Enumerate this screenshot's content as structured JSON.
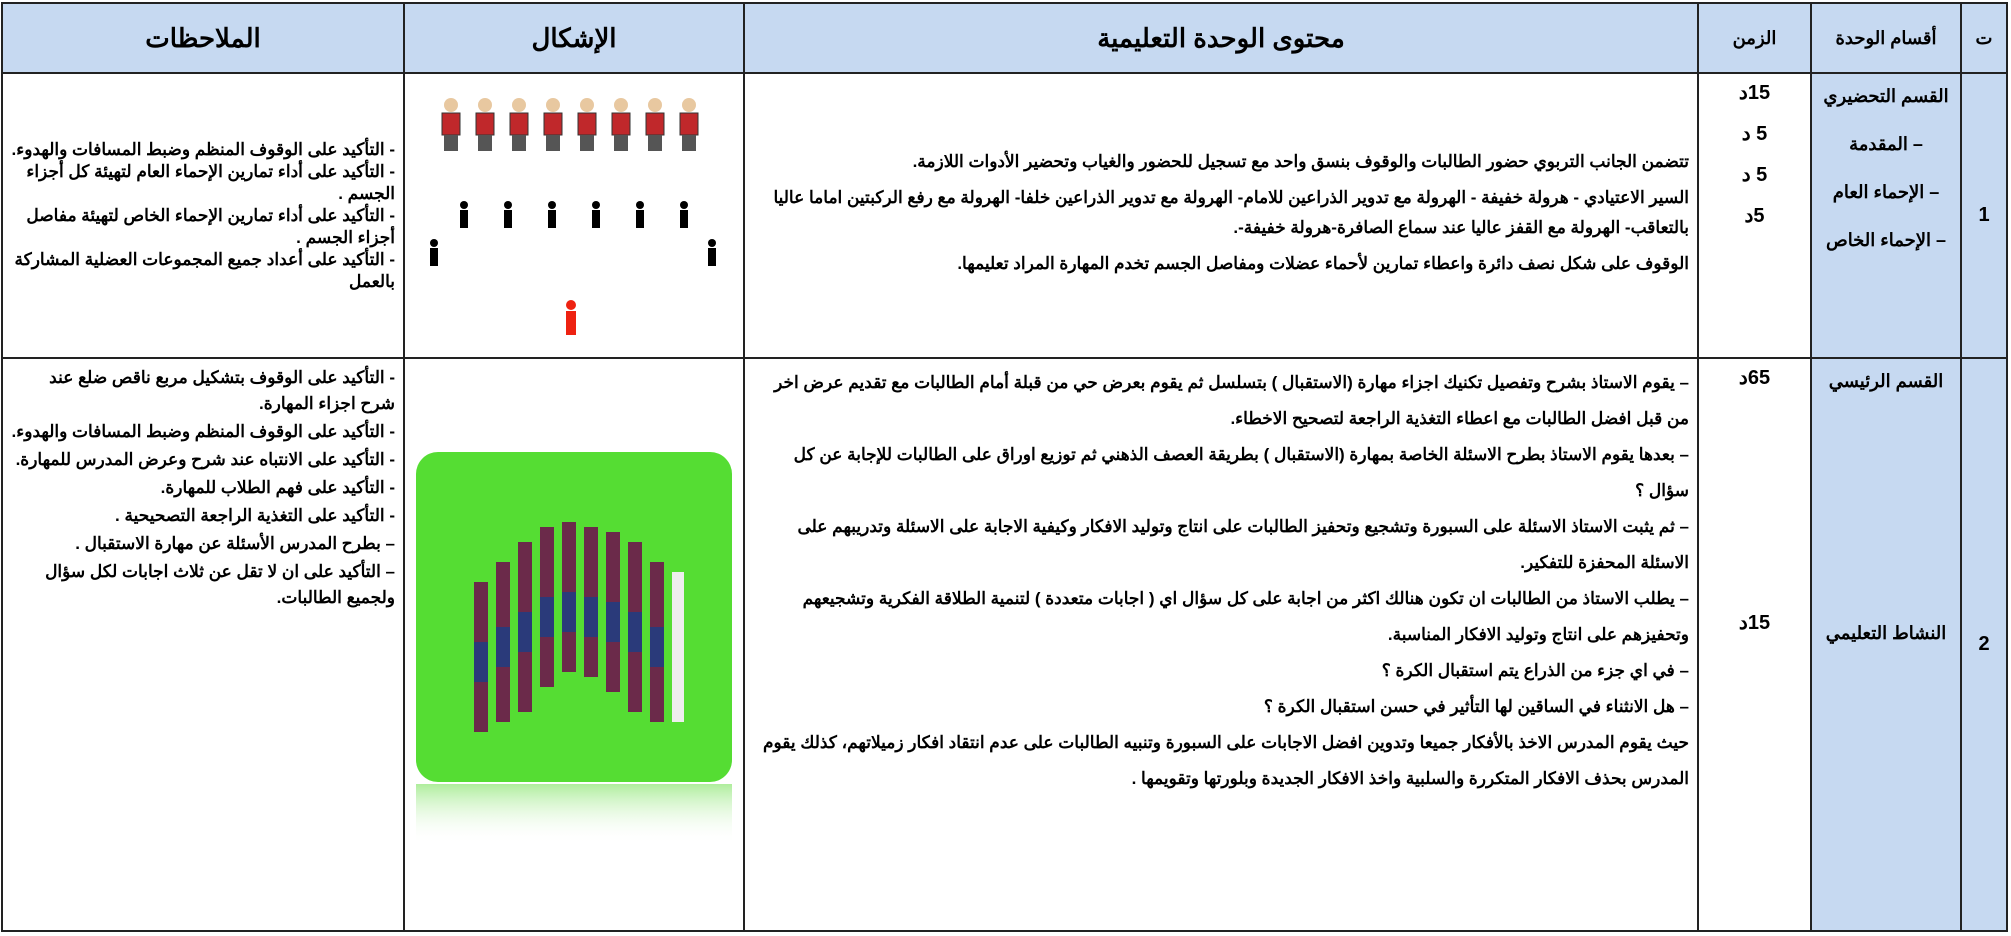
{
  "table": {
    "headers": [
      "ت",
      "أقسام الوحدة",
      "الزمن",
      "محتوى الوحدة التعليمية",
      "الإشكال",
      "الملاحظات"
    ],
    "rows": [
      {
        "number": "1",
        "sections": [
          "القسم التحضيري",
          "– المقدمة",
          "– الإحماء العام",
          "– الإحماء الخاص"
        ],
        "times": [
          "15د",
          "5 د",
          "5 د",
          "5د"
        ],
        "content": [
          "تتضمن الجانب التربوي حضور الطالبات والوقوف بنسق واحد مع تسجيل للحضور والغياب وتحضير الأدوات اللازمة.",
          "السير الاعتيادي - هرولة خفيفة - الهرولة مع تدوير الذراعين للامام- الهرولة مع تدوير الذراعين خلفا- الهرولة مع رفع الركبتين اماما عاليا بالتعاقب- الهرولة مع القفز عاليا عند سماع الصافرة-هرولة خفيفة-.",
          "الوقوف على شكل نصف دائرة واعطاء تمارين لأحماء عضلات ومفاصل الجسم تخدم المهارة المراد تعليمها."
        ],
        "notes": [
          "- التأكيد على الوقوف المنظم وضبط المسافات والهدوء.",
          "- التأكيد على أداء تمارين الإحماء العام لتهيئة كل أجزاء الجسم .",
          "- التأكيد على أداء تمارين الإحماء الخاص لتهيئة مفاصل أجزاء الجسم .",
          "- التأكيد على أعداد جميع المجموعات العضلية المشاركة بالعمل"
        ]
      },
      {
        "number": "2",
        "sections": [
          "القسم الرئيسي",
          "النشاط التعليمي"
        ],
        "times": [
          "65د",
          "15د"
        ],
        "content": [
          "– يقوم الاستاذ بشرح وتفصيل تكنيك اجزاء مهارة (الاستقبال ) بتسلسل ثم يقوم بعرض حي من قبلة أمام الطالبات مع تقديم عرض اخر من قبل افضل الطالبات مع اعطاء التغذية الراجعة لتصحيح الاخطاء.",
          "– بعدها يقوم الاستاذ بطرح الاسئلة الخاصة بمهارة (الاستقبال ) بطريقة العصف الذهني ثم توزيع اوراق على الطالبات للإجابة عن كل سؤال ؟",
          "– ثم يثبت الاستاذ الاسئلة على السبورة وتشجيع وتحفيز الطالبات على انتاج وتوليد الافكار وكيفية الاجابة على الاسئلة وتدريبهم على الاسئلة المحفزة للتفكير.",
          "– يطلب الاستاذ من الطالبات ان تكون هنالك اكثر من اجابة على كل سؤال اي ( اجابات متعددة ) لتنمية الطلاقة الفكرية وتشجيعهم وتحفيزهم على انتاج وتوليد الافكار المناسبة.",
          "– في اي جزء من الذراع يتم استقبال الكرة ؟",
          "– هل الانثناء في الساقين لها التأثير في حسن استقبال الكرة ؟",
          "حيث يقوم المدرس الاخذ بالأفكار جميعا وتدوين افضل الاجابات على السبورة وتنبيه الطالبات على عدم انتقاد افكار زميلاتهم، كذلك يقوم المدرس بحذف الافكار المتكررة والسلبية واخذ الافكار الجديدة وبلورتها وتقويمها ."
        ],
        "notes": [
          "- التأكيد على الوقوف بتشكيل مربع ناقص ضلع عند شرح اجزاء المهارة.",
          "- التأكيد على الوقوف المنظم وضبط المسافات والهدوء.",
          "- التأكيد على الانتباه عند شرح وعرض المدرس للمهارة.",
          "- التأكيد على فهم الطلاب للمهارة.",
          "- التأكيد على التغذية الراجعة التصحيحية .",
          "– بطرح المدرس الأسئلة عن مهارة الاستقبال .",
          "– التأكيد على ان لا تقل عن ثلاث اجابات لكل سؤال ولجميع الطالبات."
        ]
      }
    ]
  }
}
